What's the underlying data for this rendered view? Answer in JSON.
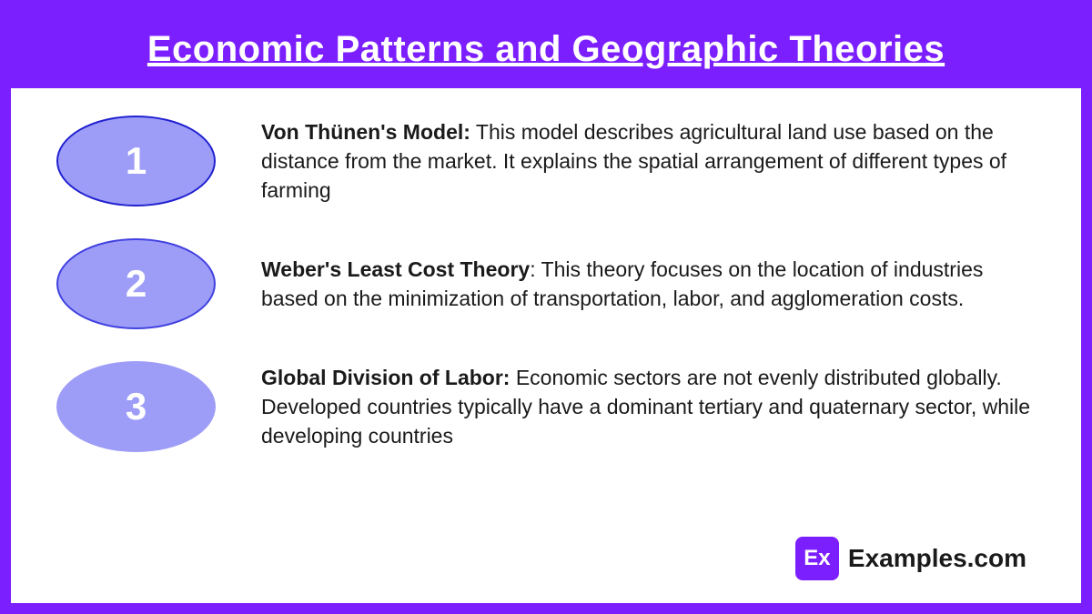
{
  "header": {
    "title": "Economic Patterns and Geographic Theories"
  },
  "items": [
    {
      "number": "1",
      "title": "Von Thünen's Model:",
      "description": " This model describes agricultural land use based on the distance from the market.  It explains the spatial arrangement of different types of farming"
    },
    {
      "number": "2",
      "title": "Weber's Least Cost Theory",
      "description": ": This theory focuses on the location of industries based on the minimization of transportation, labor, and agglomeration costs."
    },
    {
      "number": "3",
      "title": "Global Division of Labor:",
      "description": " Economic sectors are not evenly distributed globally. Developed countries typically have a dominant tertiary and quaternary sector, while developing countries"
    }
  ],
  "footer": {
    "logo_short": "Ex",
    "logo_text": "Examples.com"
  },
  "colors": {
    "primary": "#7c1fff",
    "oval_fill": "#9d9df8",
    "oval_border_1": "#2020d0",
    "oval_border_2": "#4040e0",
    "text": "#1a1a1a",
    "white": "#ffffff"
  }
}
